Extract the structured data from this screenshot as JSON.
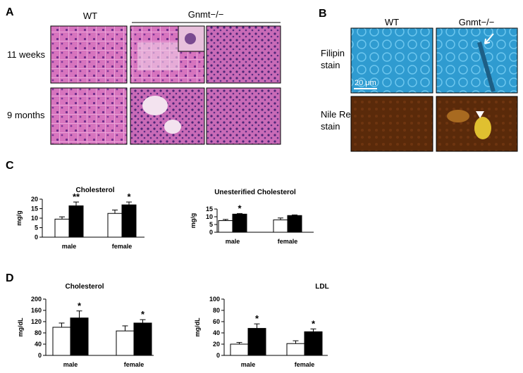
{
  "panels": {
    "A": {
      "label": "A",
      "columns": [
        "WT",
        "Gnmt−/−"
      ],
      "rows": [
        "11 weeks",
        "9 months"
      ]
    },
    "B": {
      "label": "B",
      "columns": [
        "WT",
        "Gnmt−/−"
      ],
      "rows": [
        [
          "Filipin",
          "stain"
        ],
        [
          "Nile Red",
          "stain"
        ]
      ],
      "scale_bar": "20 μm"
    },
    "C": {
      "label": "C"
    },
    "D": {
      "label": "D"
    }
  },
  "chart_data": [
    {
      "type": "bar",
      "title": "Cholesterol",
      "y_label": "mg/g",
      "categories": [
        "male",
        "female"
      ],
      "series": [
        {
          "color": "#ffffff",
          "values": [
            9.5,
            12.5
          ],
          "errors": [
            1.2,
            1.8
          ]
        },
        {
          "color": "#000000",
          "values": [
            16.5,
            17
          ],
          "errors": [
            2,
            1.5
          ],
          "significance": [
            "**",
            "*"
          ]
        }
      ],
      "ylim": [
        0,
        20
      ],
      "yticks": [
        0,
        5,
        10,
        15,
        20
      ]
    },
    {
      "type": "bar",
      "title": "Unesterified Cholesterol",
      "y_label": "mg/g",
      "categories": [
        "male",
        "female"
      ],
      "series": [
        {
          "color": "#ffffff",
          "values": [
            7.5,
            8
          ],
          "errors": [
            0.8,
            1.2
          ]
        },
        {
          "color": "#000000",
          "values": [
            11.7,
            10.8
          ],
          "errors": [
            0.4,
            0.4
          ],
          "significance": [
            "*",
            null
          ]
        }
      ],
      "ylim": [
        0,
        15
      ],
      "yticks": [
        0,
        5,
        10,
        15
      ]
    },
    {
      "type": "bar",
      "title": "Cholesterol",
      "y_label": "mg/dL",
      "categories": [
        "male",
        "female"
      ],
      "series": [
        {
          "color": "#ffffff",
          "values": [
            100,
            87
          ],
          "errors": [
            15,
            18
          ]
        },
        {
          "color": "#000000",
          "values": [
            133,
            115
          ],
          "errors": [
            25,
            12
          ],
          "significance": [
            "*",
            "*"
          ]
        }
      ],
      "ylim": [
        0,
        200
      ],
      "yticks": [
        0,
        40,
        80,
        120,
        160,
        200
      ]
    },
    {
      "type": "bar",
      "title": "LDL",
      "y_label": "mg/dL",
      "categories": [
        "male",
        "female"
      ],
      "series": [
        {
          "color": "#ffffff",
          "values": [
            20,
            21
          ],
          "errors": [
            3,
            5
          ]
        },
        {
          "color": "#000000",
          "values": [
            48,
            42
          ],
          "errors": [
            8,
            5
          ],
          "significance": [
            "*",
            "*"
          ]
        }
      ],
      "ylim": [
        0,
        100
      ],
      "yticks": [
        0,
        20,
        40,
        60,
        80,
        100
      ]
    }
  ]
}
